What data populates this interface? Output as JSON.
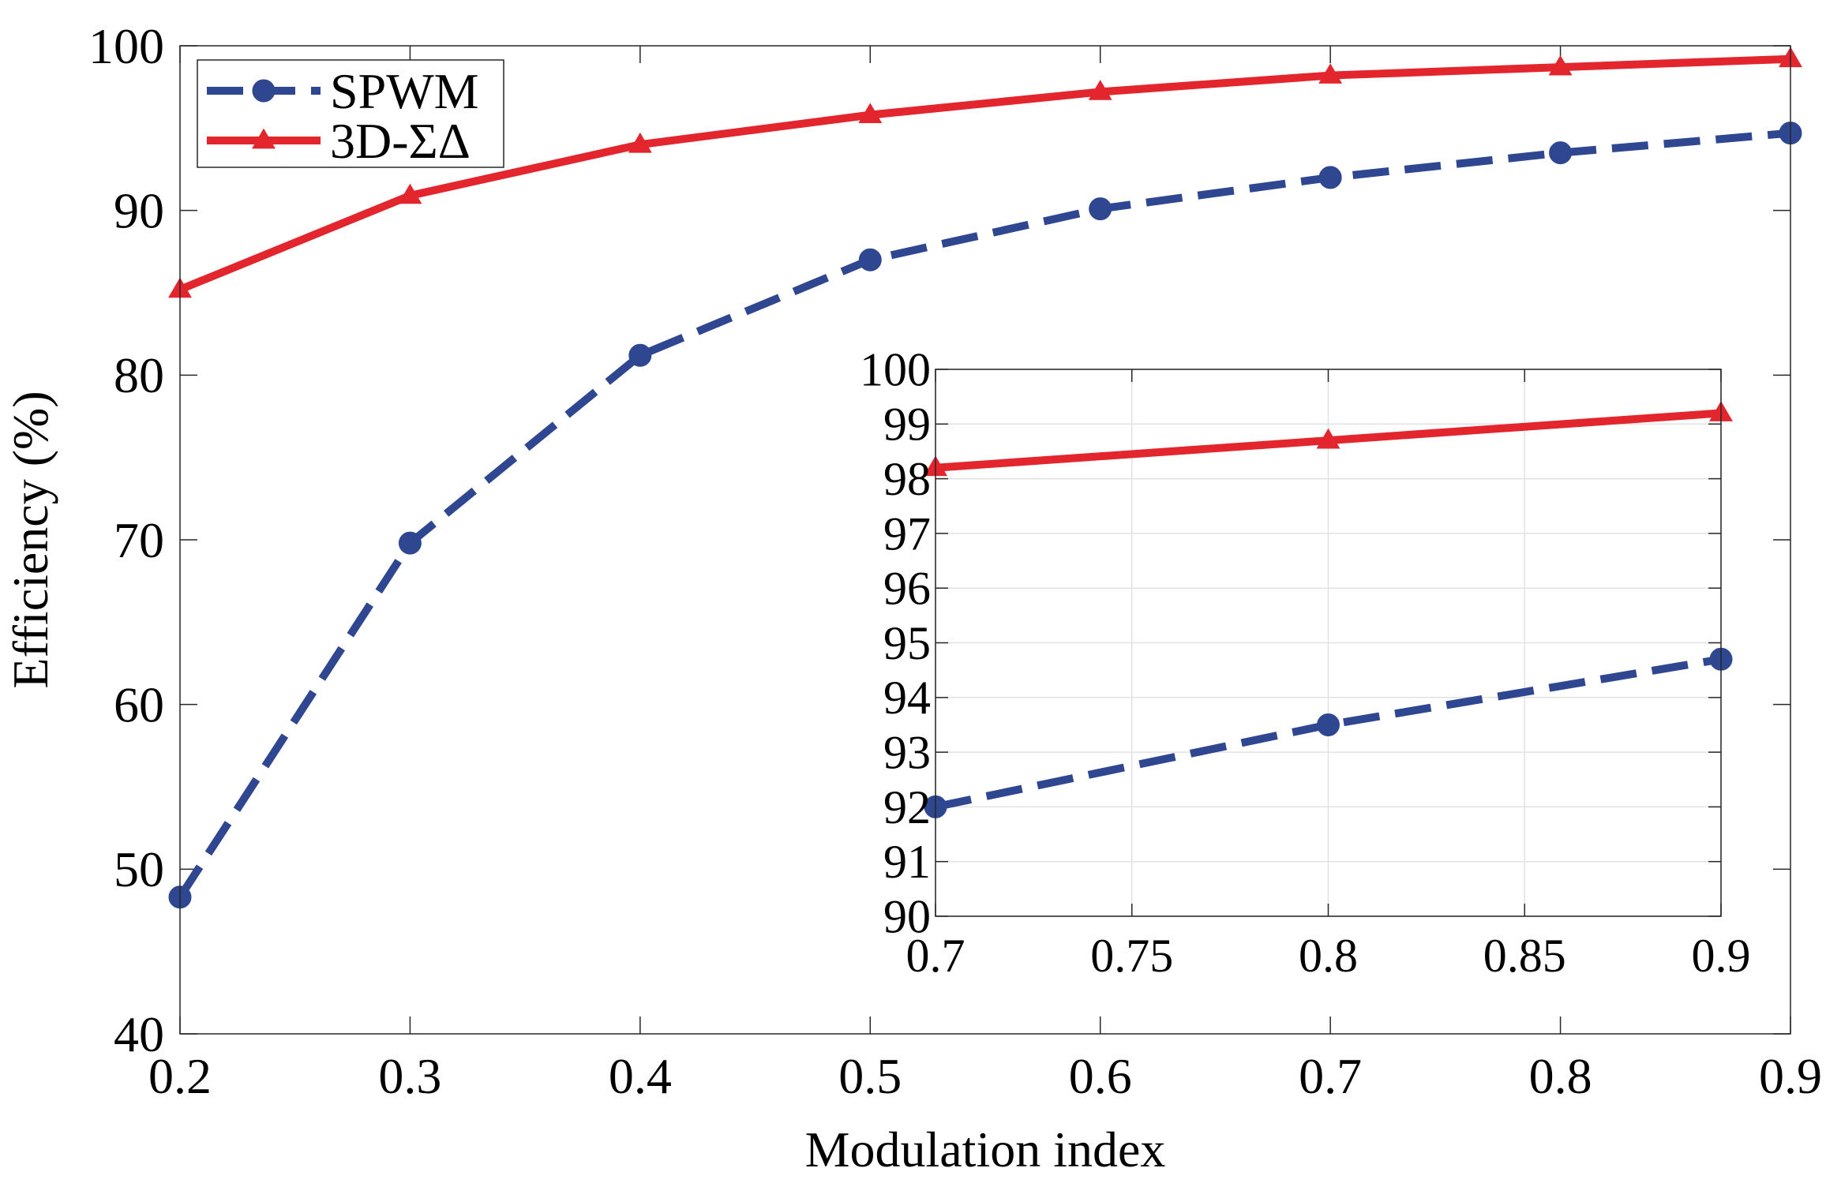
{
  "chart_data": [
    {
      "type": "line",
      "title": "",
      "xlabel": "Modulation index",
      "ylabel": "Efficiency (%)",
      "xlim": [
        0.2,
        0.9
      ],
      "ylim": [
        40,
        100
      ],
      "xticks": [
        0.2,
        0.3,
        0.4,
        0.5,
        0.6,
        0.7,
        0.8,
        0.9
      ],
      "xtick_labels": [
        "0.2",
        "0.3",
        "0.4",
        "0.5",
        "0.6",
        "0.7",
        "0.8",
        "0.9"
      ],
      "yticks": [
        40,
        50,
        60,
        70,
        80,
        90,
        100
      ],
      "ytick_labels": [
        "40",
        "50",
        "60",
        "70",
        "80",
        "90",
        "100"
      ],
      "grid": false,
      "legend_position": "top-left",
      "x": [
        0.2,
        0.3,
        0.4,
        0.5,
        0.6,
        0.7,
        0.8,
        0.9
      ],
      "series": [
        {
          "name": "SPWM",
          "color": "#2f4690",
          "line_style": "dashed",
          "marker": "circle",
          "values": [
            48.3,
            69.8,
            81.2,
            87.0,
            90.1,
            92.0,
            93.5,
            94.7
          ]
        },
        {
          "name": "3D-ΣΔ",
          "color": "#e3262d",
          "line_style": "solid",
          "marker": "triangle",
          "values": [
            85.2,
            90.9,
            94.0,
            95.8,
            97.2,
            98.2,
            98.7,
            99.2
          ]
        }
      ]
    },
    {
      "type": "line",
      "title": "",
      "xlabel": "",
      "ylabel": "",
      "xlim": [
        0.7,
        0.9
      ],
      "ylim": [
        90,
        100
      ],
      "xticks": [
        0.7,
        0.75,
        0.8,
        0.85,
        0.9
      ],
      "xtick_labels": [
        "0.7",
        "0.75",
        "0.8",
        "0.85",
        "0.9"
      ],
      "yticks": [
        90,
        91,
        92,
        93,
        94,
        95,
        96,
        97,
        98,
        99,
        100
      ],
      "ytick_labels": [
        "90",
        "91",
        "92",
        "93",
        "94",
        "95",
        "96",
        "97",
        "98",
        "99",
        "100"
      ],
      "grid": true,
      "x": [
        0.7,
        0.8,
        0.9
      ],
      "series": [
        {
          "color": "#2f4690",
          "line_style": "dashed",
          "marker": "circle",
          "values": [
            92.0,
            93.5,
            94.7
          ]
        },
        {
          "color": "#e3262d",
          "line_style": "solid",
          "marker": "triangle",
          "values": [
            98.2,
            98.7,
            99.2
          ]
        }
      ]
    }
  ]
}
